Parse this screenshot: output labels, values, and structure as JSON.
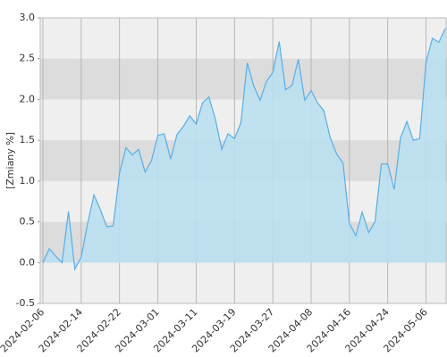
{
  "chart_data": {
    "type": "area",
    "y_label": "[Zmiany %]",
    "categories": [
      "2024-02-06",
      null,
      null,
      null,
      null,
      null,
      "2024-02-14",
      null,
      null,
      null,
      null,
      null,
      "2024-02-22",
      null,
      null,
      null,
      null,
      null,
      "2024-03-01",
      null,
      null,
      null,
      null,
      null,
      "2024-03-11",
      null,
      null,
      null,
      null,
      null,
      "2024-03-19",
      null,
      null,
      null,
      null,
      null,
      "2024-03-27",
      null,
      null,
      null,
      null,
      null,
      "2024-04-08",
      null,
      null,
      null,
      null,
      null,
      "2024-04-16",
      null,
      null,
      null,
      null,
      null,
      "2024-04-24",
      null,
      null,
      null,
      null,
      null,
      "2024-05-06",
      null,
      null,
      null
    ],
    "values": [
      0.0,
      0.17,
      0.08,
      0.0,
      0.63,
      -0.08,
      0.07,
      0.48,
      0.83,
      0.65,
      0.44,
      0.45,
      1.1,
      1.41,
      1.32,
      1.39,
      1.11,
      1.25,
      1.56,
      1.58,
      1.27,
      1.57,
      1.67,
      1.8,
      1.7,
      1.96,
      2.03,
      1.76,
      1.39,
      1.58,
      1.52,
      1.71,
      2.45,
      2.17,
      1.99,
      2.22,
      2.33,
      2.71,
      2.12,
      2.17,
      2.49,
      1.99,
      2.11,
      1.96,
      1.86,
      1.53,
      1.33,
      1.22,
      0.48,
      0.33,
      0.62,
      0.37,
      0.5,
      1.21,
      1.21,
      0.9,
      1.53,
      1.73,
      1.5,
      1.52,
      2.46,
      2.75,
      2.7,
      2.87
    ],
    "color": "#5aaee6",
    "fill_color": "#b9dff0",
    "ylim": [
      -0.5,
      3
    ],
    "yticks": [
      -0.5,
      {
        "value": 0,
        "label": "0.0"
      },
      0.5,
      {
        "value": 1,
        "label": "1.0"
      },
      1.5,
      {
        "value": 2,
        "label": "2.0"
      },
      2.5,
      {
        "value": 3,
        "label": "3.0"
      }
    ],
    "grid": true
  }
}
